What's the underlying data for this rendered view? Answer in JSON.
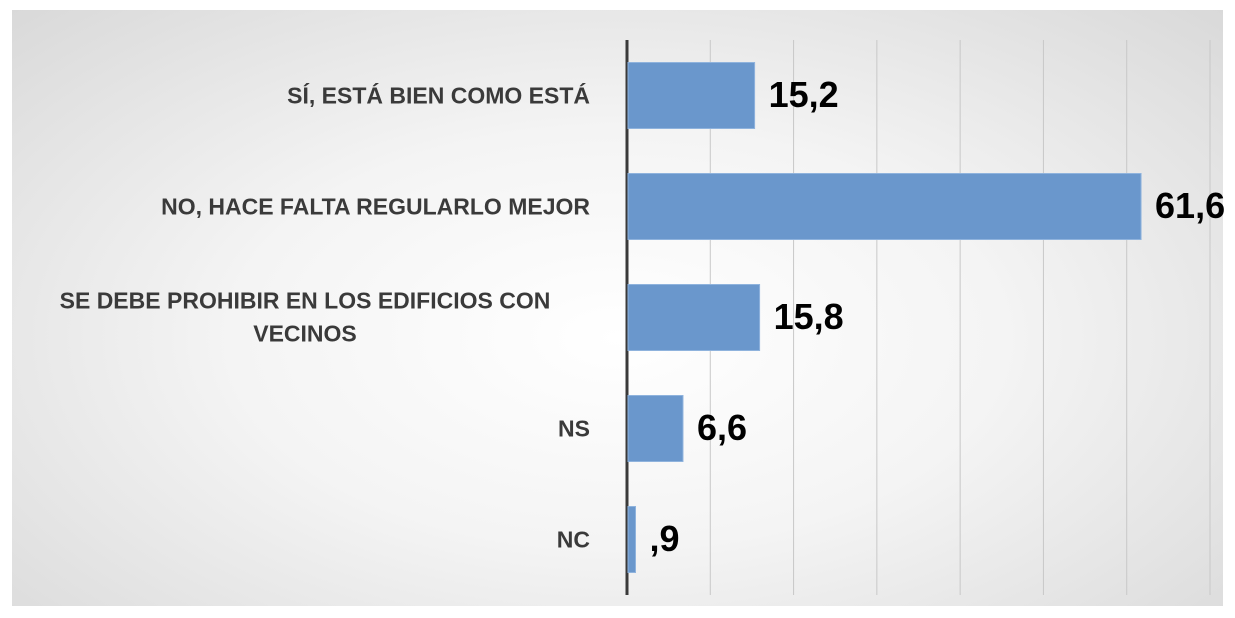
{
  "chart_data": {
    "type": "bar",
    "orientation": "horizontal",
    "categories": [
      "SÍ, ESTÁ BIEN COMO ESTÁ",
      "NO, HACE FALTA REGULARLO MEJOR",
      "SE DEBE PROHIBIR EN LOS EDIFICIOS CON VECINOS",
      "NS",
      "NC"
    ],
    "values": [
      15.2,
      61.6,
      15.8,
      6.6,
      0.9
    ],
    "value_labels": [
      "15,2",
      "61,6",
      "15,8",
      "6,6",
      ",9"
    ],
    "color": "#6a97cc",
    "xlim": [
      0,
      70
    ],
    "xticks": [
      0,
      10,
      20,
      30,
      40,
      50,
      60,
      70
    ],
    "grid": true
  }
}
